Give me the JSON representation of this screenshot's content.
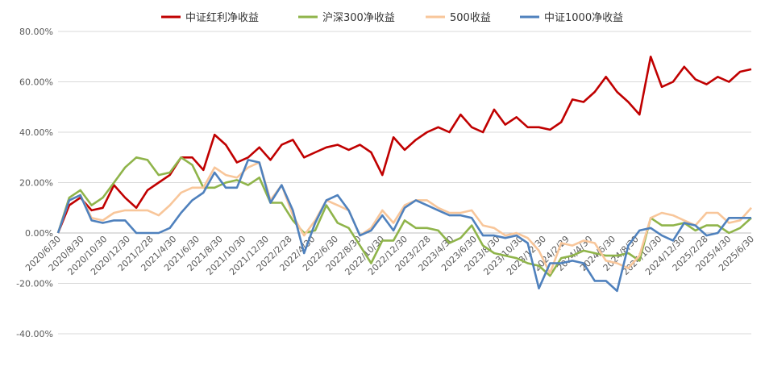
{
  "chart_data": {
    "type": "line",
    "title": "",
    "xlabel": "",
    "ylabel": "",
    "ylim": [
      -0.4,
      0.8
    ],
    "y_ticks": [
      0.8,
      0.6,
      0.4,
      0.2,
      0.0,
      -0.2,
      -0.4
    ],
    "y_tick_labels": [
      "80.00%",
      "60.00%",
      "40.00%",
      "20.00%",
      "0.00%",
      "-20.00%",
      "-40.00%"
    ],
    "grid": "horizontal",
    "legend_position": "top",
    "x_tick_labels": [
      "2020/6/30",
      "2020/8/30",
      "2020/10/30",
      "2020/12/30",
      "2021/2/28",
      "2021/4/30",
      "2021/6/30",
      "2021/8/30",
      "2021/10/30",
      "2021/12/30",
      "2022/2/28",
      "2022/4/30",
      "2022/6/30",
      "2022/8/30",
      "2022/10/30",
      "2022/12/30",
      "2023/2/28",
      "2023/4/30",
      "2023/6/30",
      "2023/8/30",
      "2023/10/30",
      "2023/12/30",
      "2024/2/29",
      "2024/4/30",
      "2024/6/30",
      "2024/8/30",
      "2024/10/30",
      "2024/12/30",
      "2025/2/28",
      "2025/4/30",
      "2025/6/30"
    ],
    "series": [
      {
        "name": "中证红利净收益",
        "color": "#C00000",
        "values": [
          0.0,
          0.11,
          0.14,
          0.09,
          0.1,
          0.19,
          0.14,
          0.1,
          0.17,
          0.2,
          0.23,
          0.3,
          0.3,
          0.25,
          0.39,
          0.35,
          0.28,
          0.3,
          0.34,
          0.29,
          0.35,
          0.37,
          0.3,
          0.32,
          0.34,
          0.35,
          0.33,
          0.35,
          0.32,
          0.23,
          0.38,
          0.33,
          0.37,
          0.4,
          0.42,
          0.4,
          0.47,
          0.42,
          0.4,
          0.49,
          0.43,
          0.46,
          0.42,
          0.42,
          0.41,
          0.44,
          0.53,
          0.52,
          0.56,
          0.62,
          0.56,
          0.52,
          0.47,
          0.7,
          0.58,
          0.6,
          0.66,
          0.61,
          0.59,
          0.62,
          0.6,
          0.64,
          0.65
        ]
      },
      {
        "name": "沪深300净收益",
        "color": "#8FB44A",
        "values": [
          0.0,
          0.14,
          0.17,
          0.11,
          0.14,
          0.2,
          0.26,
          0.3,
          0.29,
          0.23,
          0.24,
          0.3,
          0.27,
          0.18,
          0.18,
          0.2,
          0.21,
          0.19,
          0.22,
          0.12,
          0.12,
          0.05,
          0.0,
          0.01,
          0.11,
          0.04,
          0.02,
          -0.05,
          -0.12,
          -0.03,
          -0.03,
          0.05,
          0.02,
          0.02,
          0.01,
          -0.04,
          -0.02,
          0.03,
          -0.05,
          -0.08,
          -0.09,
          -0.1,
          -0.12,
          -0.13,
          -0.17,
          -0.1,
          -0.09,
          -0.07,
          -0.08,
          -0.09,
          -0.09,
          -0.08,
          -0.11,
          0.06,
          0.03,
          0.03,
          0.04,
          0.01,
          0.03,
          0.03,
          0.0,
          0.02,
          0.06
        ]
      },
      {
        "name": "500收益",
        "color": "#F8C69A",
        "values": [
          0.0,
          0.13,
          0.15,
          0.06,
          0.05,
          0.08,
          0.09,
          0.09,
          0.09,
          0.07,
          0.11,
          0.16,
          0.18,
          0.18,
          0.26,
          0.23,
          0.22,
          0.26,
          0.28,
          0.13,
          0.19,
          0.07,
          -0.01,
          0.05,
          0.13,
          0.11,
          0.09,
          -0.01,
          0.02,
          0.09,
          0.04,
          0.11,
          0.13,
          0.13,
          0.1,
          0.08,
          0.08,
          0.09,
          0.03,
          0.02,
          -0.01,
          0.0,
          -0.02,
          -0.07,
          -0.16,
          -0.04,
          -0.05,
          -0.03,
          -0.04,
          -0.11,
          -0.12,
          -0.14,
          -0.09,
          0.06,
          0.08,
          0.07,
          0.05,
          0.03,
          0.08,
          0.08,
          0.04,
          0.05,
          0.1
        ]
      },
      {
        "name": "中证1000净收益",
        "color": "#4F81BD",
        "values": [
          0.0,
          0.13,
          0.15,
          0.05,
          0.04,
          0.05,
          0.05,
          0.0,
          0.0,
          0.0,
          0.02,
          0.08,
          0.13,
          0.16,
          0.24,
          0.18,
          0.18,
          0.29,
          0.28,
          0.12,
          0.19,
          0.09,
          -0.08,
          0.04,
          0.13,
          0.15,
          0.09,
          -0.01,
          0.01,
          0.07,
          0.01,
          0.1,
          0.13,
          0.11,
          0.09,
          0.07,
          0.07,
          0.06,
          -0.01,
          -0.01,
          -0.02,
          -0.01,
          -0.04,
          -0.22,
          -0.12,
          -0.12,
          -0.11,
          -0.12,
          -0.19,
          -0.19,
          -0.23,
          -0.05,
          0.01,
          0.02,
          -0.01,
          -0.03,
          0.04,
          0.03,
          -0.01,
          0.0,
          0.06,
          0.06,
          0.06
        ]
      }
    ]
  }
}
